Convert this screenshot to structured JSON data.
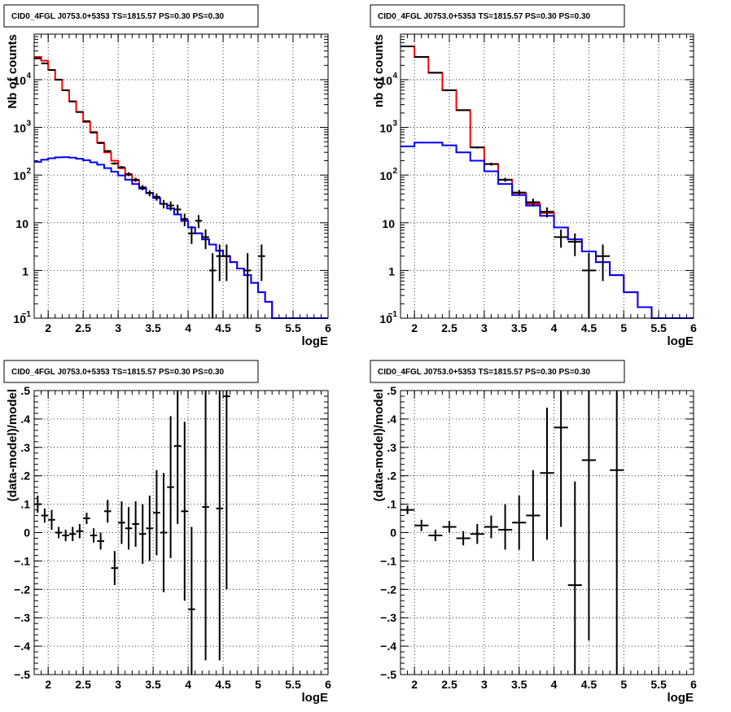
{
  "chart_data": [
    {
      "type": "step",
      "title": "CID0_4FGL J0753.0+5353 TS=1815.57 PS=0.30 PS=0.30",
      "xlabel": "logE",
      "ylabel": "Nb of counts",
      "ylog": true,
      "xlim": [
        1.8,
        6.0
      ],
      "ylim": [
        0.1,
        90000
      ],
      "xticks": [
        2,
        2.5,
        3,
        3.5,
        4,
        4.5,
        5,
        5.5,
        6
      ],
      "yticks": [
        {
          "v": 0.1,
          "label": "10",
          "sup": "−1"
        },
        {
          "v": 1,
          "label": "1"
        },
        {
          "v": 10,
          "label": "10"
        },
        {
          "v": 100,
          "label": "10",
          "sup": "2"
        },
        {
          "v": 1000,
          "label": "10",
          "sup": "3"
        },
        {
          "v": 10000,
          "label": "10",
          "sup": "4"
        }
      ],
      "grid": true,
      "series": [
        {
          "color": "#ff0000",
          "bins": [
            1.8,
            1.9,
            2.0,
            2.1,
            2.2,
            2.3,
            2.4,
            2.5,
            2.6,
            2.7,
            2.8,
            2.9,
            3.0,
            3.1,
            3.2,
            3.3,
            3.4,
            3.5,
            3.6,
            3.7,
            3.8,
            3.9,
            4.0,
            4.1,
            4.2,
            4.3,
            4.4,
            4.5,
            4.6,
            4.7,
            4.8,
            4.9,
            5.0,
            5.1,
            5.2,
            5.3,
            5.4,
            5.5,
            5.6,
            5.7,
            5.8,
            5.9,
            6.0
          ],
          "values": [
            30000,
            25000,
            16000,
            10000,
            6000,
            3500,
            2100,
            1300,
            800,
            480,
            300,
            200,
            140,
            100,
            78,
            55,
            42,
            33,
            25,
            20,
            15,
            11,
            8,
            6,
            4.5,
            3.5,
            2.6,
            2.0,
            1.5,
            1.1,
            0.8,
            0.55,
            0.35,
            0.22,
            0.1,
            0.1,
            0.1,
            0.1,
            0.1,
            0.1,
            0.1,
            0.1
          ]
        },
        {
          "color": "#0000ff",
          "bins": [
            1.8,
            1.9,
            2.0,
            2.1,
            2.2,
            2.3,
            2.4,
            2.5,
            2.6,
            2.7,
            2.8,
            2.9,
            3.0,
            3.1,
            3.2,
            3.3,
            3.4,
            3.5,
            3.6,
            3.7,
            3.8,
            3.9,
            4.0,
            4.1,
            4.2,
            4.3,
            4.4,
            4.5,
            4.6,
            4.7,
            4.8,
            4.9,
            5.0,
            5.1,
            5.2,
            5.3,
            5.4,
            5.5,
            5.6,
            5.7,
            5.8,
            5.9,
            6.0
          ],
          "values": [
            190,
            210,
            225,
            235,
            238,
            232,
            220,
            205,
            185,
            165,
            140,
            118,
            98,
            80,
            65,
            52,
            42,
            33,
            25,
            20,
            15,
            11,
            8,
            6,
            4.5,
            3.5,
            2.6,
            2.0,
            1.5,
            1.1,
            0.8,
            0.55,
            0.35,
            0.22,
            0.1,
            0.1,
            0.1,
            0.1,
            0.1,
            0.1,
            0.1,
            0.1
          ]
        }
      ],
      "points": [
        {
          "x": 1.85,
          "xe": 0.05,
          "y": 28000,
          "lo": 27500,
          "hi": 28500
        },
        {
          "x": 1.95,
          "xe": 0.05,
          "y": 22000,
          "lo": 21600,
          "hi": 22400
        },
        {
          "x": 2.05,
          "xe": 0.05,
          "y": 16000,
          "lo": 15700,
          "hi": 16300
        },
        {
          "x": 2.15,
          "xe": 0.05,
          "y": 10000,
          "lo": 9800,
          "hi": 10200
        },
        {
          "x": 2.25,
          "xe": 0.05,
          "y": 6000,
          "lo": 5850,
          "hi": 6150
        },
        {
          "x": 2.35,
          "xe": 0.05,
          "y": 3500,
          "lo": 3400,
          "hi": 3600
        },
        {
          "x": 2.45,
          "xe": 0.05,
          "y": 2100,
          "lo": 2030,
          "hi": 2170
        },
        {
          "x": 2.55,
          "xe": 0.05,
          "y": 1350,
          "lo": 1300,
          "hi": 1400
        },
        {
          "x": 2.65,
          "xe": 0.05,
          "y": 780,
          "lo": 750,
          "hi": 810
        },
        {
          "x": 2.75,
          "xe": 0.05,
          "y": 470,
          "lo": 450,
          "hi": 490
        },
        {
          "x": 2.85,
          "xe": 0.05,
          "y": 320,
          "lo": 305,
          "hi": 335
        },
        {
          "x": 2.95,
          "xe": 0.05,
          "y": 175,
          "lo": 165,
          "hi": 185
        },
        {
          "x": 3.05,
          "xe": 0.05,
          "y": 145,
          "lo": 135,
          "hi": 155
        },
        {
          "x": 3.15,
          "xe": 0.05,
          "y": 105,
          "lo": 95,
          "hi": 115
        },
        {
          "x": 3.25,
          "xe": 0.05,
          "y": 80,
          "lo": 72,
          "hi": 88
        },
        {
          "x": 3.35,
          "xe": 0.05,
          "y": 55,
          "lo": 48,
          "hi": 62
        },
        {
          "x": 3.45,
          "xe": 0.05,
          "y": 42,
          "lo": 36,
          "hi": 48
        },
        {
          "x": 3.55,
          "xe": 0.05,
          "y": 35,
          "lo": 29,
          "hi": 41
        },
        {
          "x": 3.65,
          "xe": 0.05,
          "y": 25,
          "lo": 20,
          "hi": 30
        },
        {
          "x": 3.75,
          "xe": 0.05,
          "y": 23,
          "lo": 18,
          "hi": 28
        },
        {
          "x": 3.85,
          "xe": 0.05,
          "y": 19,
          "lo": 15,
          "hi": 24
        },
        {
          "x": 3.95,
          "xe": 0.05,
          "y": 12,
          "lo": 8.5,
          "hi": 15.5
        },
        {
          "x": 4.05,
          "xe": 0.05,
          "y": 6,
          "lo": 3.6,
          "hi": 8.5
        },
        {
          "x": 4.15,
          "xe": 0.05,
          "y": 11,
          "lo": 7.7,
          "hi": 14.5
        },
        {
          "x": 4.25,
          "xe": 0.05,
          "y": 5,
          "lo": 2.8,
          "hi": 7.3
        },
        {
          "x": 4.35,
          "xe": 0.05,
          "y": 1,
          "lo": 0.1,
          "hi": 2.3
        },
        {
          "x": 4.45,
          "xe": 0.05,
          "y": 2,
          "lo": 0.6,
          "hi": 3.5
        },
        {
          "x": 4.55,
          "xe": 0.05,
          "y": 2,
          "lo": 0.6,
          "hi": 3.5
        },
        {
          "x": 4.85,
          "xe": 0.05,
          "y": 1,
          "lo": 0.1,
          "hi": 2.3
        },
        {
          "x": 5.05,
          "xe": 0.05,
          "y": 2,
          "lo": 0.6,
          "hi": 3.5
        }
      ]
    },
    {
      "type": "step",
      "title": "CID0_4FGL J0753.0+5353 TS=1815.57 PS=0.30 PS=0.30",
      "xlabel": "logE",
      "ylabel": "nb of counts",
      "ylog": true,
      "xlim": [
        1.8,
        6.0
      ],
      "ylim": [
        0.1,
        90000
      ],
      "xticks": [
        2,
        2.5,
        3,
        3.5,
        4,
        4.5,
        5,
        5.5,
        6
      ],
      "yticks": [
        {
          "v": 0.1,
          "label": "10",
          "sup": "−1"
        },
        {
          "v": 1,
          "label": "1"
        },
        {
          "v": 10,
          "label": "10"
        },
        {
          "v": 100,
          "label": "10",
          "sup": "2"
        },
        {
          "v": 1000,
          "label": "10",
          "sup": "3"
        },
        {
          "v": 10000,
          "label": "10",
          "sup": "4"
        }
      ],
      "grid": true,
      "series": [
        {
          "color": "#ff0000",
          "bins": [
            1.8,
            2.0,
            2.2,
            2.4,
            2.6,
            2.8,
            3.0,
            3.2,
            3.4,
            3.6,
            3.8,
            4.0,
            4.2,
            4.4,
            4.6,
            4.8,
            5.0,
            5.2,
            5.4,
            5.6,
            5.8,
            6.0
          ],
          "values": [
            50000,
            30000,
            14000,
            6000,
            2300,
            380,
            170,
            80,
            42,
            25,
            16,
            8,
            4.5,
            2.5,
            1.5,
            0.8,
            0.35,
            0.17,
            0.1,
            0.1,
            0.1
          ]
        },
        {
          "color": "#0000ff",
          "bins": [
            1.8,
            2.0,
            2.2,
            2.4,
            2.6,
            2.8,
            3.0,
            3.2,
            3.4,
            3.6,
            3.8,
            4.0,
            4.2,
            4.4,
            4.6,
            4.8,
            5.0,
            5.2,
            5.4,
            5.6,
            5.8,
            6.0
          ],
          "values": [
            400,
            480,
            480,
            420,
            300,
            200,
            120,
            65,
            38,
            23,
            14,
            8,
            4.5,
            2.5,
            1.5,
            0.8,
            0.35,
            0.17,
            0.1,
            0.1,
            0.1
          ]
        }
      ],
      "points": [
        {
          "x": 1.9,
          "xe": 0.1,
          "y": 50000,
          "lo": 49500,
          "hi": 50500
        },
        {
          "x": 2.1,
          "xe": 0.1,
          "y": 30000,
          "lo": 29600,
          "hi": 30400
        },
        {
          "x": 2.3,
          "xe": 0.1,
          "y": 14000,
          "lo": 13700,
          "hi": 14300
        },
        {
          "x": 2.5,
          "xe": 0.1,
          "y": 6000,
          "lo": 5850,
          "hi": 6150
        },
        {
          "x": 2.7,
          "xe": 0.1,
          "y": 2300,
          "lo": 2230,
          "hi": 2370
        },
        {
          "x": 2.9,
          "xe": 0.1,
          "y": 380,
          "lo": 360,
          "hi": 400
        },
        {
          "x": 3.1,
          "xe": 0.1,
          "y": 170,
          "lo": 158,
          "hi": 182
        },
        {
          "x": 3.3,
          "xe": 0.1,
          "y": 80,
          "lo": 72,
          "hi": 88
        },
        {
          "x": 3.5,
          "xe": 0.1,
          "y": 43,
          "lo": 37,
          "hi": 49
        },
        {
          "x": 3.7,
          "xe": 0.1,
          "y": 27,
          "lo": 22,
          "hi": 32
        },
        {
          "x": 3.9,
          "xe": 0.1,
          "y": 17,
          "lo": 13,
          "hi": 21
        },
        {
          "x": 4.1,
          "xe": 0.1,
          "y": 5,
          "lo": 3,
          "hi": 7.2
        },
        {
          "x": 4.3,
          "xe": 0.1,
          "y": 4,
          "lo": 2,
          "hi": 6
        },
        {
          "x": 4.5,
          "xe": 0.1,
          "y": 1,
          "lo": 0.1,
          "hi": 2.3
        },
        {
          "x": 4.7,
          "xe": 0.1,
          "y": 2,
          "lo": 0.6,
          "hi": 3.5
        }
      ]
    },
    {
      "type": "errorbar",
      "title": "CID0_4FGL J0753.0+5353 TS=1815.57 PS=0.30 PS=0.30",
      "xlabel": "logE",
      "ylabel": "(data-model)/model",
      "xlim": [
        1.8,
        6.0
      ],
      "ylim": [
        -0.5,
        0.5
      ],
      "xticks": [
        2,
        2.5,
        3,
        3.5,
        4,
        4.5,
        5,
        5.5,
        6
      ],
      "yticks": [
        -0.5,
        -0.4,
        -0.3,
        -0.2,
        -0.1,
        0,
        0.1,
        0.2,
        0.3,
        0.4,
        0.5
      ],
      "grid": true,
      "points": [
        {
          "x": 1.85,
          "xe": 0.05,
          "y": 0.1,
          "lo": 0.07,
          "hi": 0.13
        },
        {
          "x": 1.95,
          "xe": 0.05,
          "y": 0.06,
          "lo": 0.035,
          "hi": 0.085
        },
        {
          "x": 2.05,
          "xe": 0.05,
          "y": 0.045,
          "lo": 0.01,
          "hi": 0.08
        },
        {
          "x": 2.15,
          "xe": 0.05,
          "y": 0.0,
          "lo": -0.02,
          "hi": 0.02
        },
        {
          "x": 2.25,
          "xe": 0.05,
          "y": -0.01,
          "lo": -0.03,
          "hi": 0.01
        },
        {
          "x": 2.35,
          "xe": 0.05,
          "y": -0.005,
          "lo": -0.03,
          "hi": 0.02
        },
        {
          "x": 2.45,
          "xe": 0.05,
          "y": 0.005,
          "lo": -0.02,
          "hi": 0.03
        },
        {
          "x": 2.55,
          "xe": 0.05,
          "y": 0.05,
          "lo": 0.03,
          "hi": 0.07
        },
        {
          "x": 2.65,
          "xe": 0.05,
          "y": -0.01,
          "lo": -0.035,
          "hi": 0.015
        },
        {
          "x": 2.75,
          "xe": 0.05,
          "y": -0.03,
          "lo": -0.06,
          "hi": 0.0
        },
        {
          "x": 2.85,
          "xe": 0.05,
          "y": 0.075,
          "lo": 0.035,
          "hi": 0.115
        },
        {
          "x": 2.95,
          "xe": 0.05,
          "y": -0.125,
          "lo": -0.185,
          "hi": -0.065
        },
        {
          "x": 3.05,
          "xe": 0.05,
          "y": 0.035,
          "lo": -0.04,
          "hi": 0.11
        },
        {
          "x": 3.15,
          "xe": 0.05,
          "y": 0.015,
          "lo": -0.06,
          "hi": 0.09
        },
        {
          "x": 3.25,
          "xe": 0.05,
          "y": 0.03,
          "lo": -0.05,
          "hi": 0.11
        },
        {
          "x": 3.35,
          "xe": 0.05,
          "y": -0.005,
          "lo": -0.11,
          "hi": 0.1
        },
        {
          "x": 3.45,
          "xe": 0.05,
          "y": 0.015,
          "lo": -0.1,
          "hi": 0.13
        },
        {
          "x": 3.55,
          "xe": 0.05,
          "y": 0.07,
          "lo": -0.08,
          "hi": 0.22
        },
        {
          "x": 3.65,
          "xe": 0.05,
          "y": 0.0,
          "lo": -0.21,
          "hi": 0.21
        },
        {
          "x": 3.75,
          "xe": 0.05,
          "y": 0.16,
          "lo": -0.09,
          "hi": 0.41
        },
        {
          "x": 3.85,
          "xe": 0.05,
          "y": 0.305,
          "lo": 0.03,
          "hi": 0.58
        },
        {
          "x": 3.95,
          "xe": 0.05,
          "y": 0.075,
          "lo": -0.24,
          "hi": 0.39
        },
        {
          "x": 4.05,
          "xe": 0.05,
          "y": -0.27,
          "lo": -0.56,
          "hi": 0.02
        },
        {
          "x": 4.25,
          "xe": 0.05,
          "y": 0.09,
          "lo": -0.45,
          "hi": 0.63
        },
        {
          "x": 4.45,
          "xe": 0.05,
          "y": 0.085,
          "lo": -0.45,
          "hi": 0.62
        },
        {
          "x": 4.55,
          "xe": 0.05,
          "y": 0.48,
          "lo": -0.2,
          "hi": 0.9
        }
      ]
    },
    {
      "type": "errorbar",
      "title": "CID0_4FGL J0753.0+5353 TS=1815.57 PS=0.30 PS=0.30",
      "xlabel": "logE",
      "ylabel": "(data-model)/model",
      "xlim": [
        1.8,
        6.0
      ],
      "ylim": [
        -0.5,
        0.5
      ],
      "xticks": [
        2,
        2.5,
        3,
        3.5,
        4,
        4.5,
        5,
        5.5,
        6
      ],
      "yticks": [
        -0.5,
        -0.4,
        -0.3,
        -0.2,
        -0.1,
        0,
        0.1,
        0.2,
        0.3,
        0.4,
        0.5
      ],
      "grid": true,
      "points": [
        {
          "x": 1.9,
          "xe": 0.1,
          "y": 0.08,
          "lo": 0.065,
          "hi": 0.095
        },
        {
          "x": 2.1,
          "xe": 0.1,
          "y": 0.025,
          "lo": 0.005,
          "hi": 0.045
        },
        {
          "x": 2.3,
          "xe": 0.1,
          "y": -0.01,
          "lo": -0.03,
          "hi": 0.01
        },
        {
          "x": 2.5,
          "xe": 0.1,
          "y": 0.02,
          "lo": 0.0,
          "hi": 0.04
        },
        {
          "x": 2.7,
          "xe": 0.1,
          "y": -0.02,
          "lo": -0.045,
          "hi": 0.005
        },
        {
          "x": 2.9,
          "xe": 0.1,
          "y": -0.005,
          "lo": -0.04,
          "hi": 0.03
        },
        {
          "x": 3.1,
          "xe": 0.1,
          "y": 0.02,
          "lo": -0.02,
          "hi": 0.06
        },
        {
          "x": 3.3,
          "xe": 0.1,
          "y": 0.01,
          "lo": -0.06,
          "hi": 0.1
        },
        {
          "x": 3.5,
          "xe": 0.1,
          "y": 0.035,
          "lo": -0.06,
          "hi": 0.13
        },
        {
          "x": 3.7,
          "xe": 0.1,
          "y": 0.06,
          "lo": -0.1,
          "hi": 0.22
        },
        {
          "x": 3.9,
          "xe": 0.1,
          "y": 0.21,
          "lo": -0.025,
          "hi": 0.44
        },
        {
          "x": 4.1,
          "xe": 0.1,
          "y": 0.37,
          "lo": 0.02,
          "hi": 0.72
        },
        {
          "x": 4.3,
          "xe": 0.1,
          "y": -0.185,
          "lo": -0.55,
          "hi": 0.18
        },
        {
          "x": 4.5,
          "xe": 0.1,
          "y": 0.255,
          "lo": -0.38,
          "hi": 0.89
        },
        {
          "x": 4.9,
          "xe": 0.1,
          "y": 0.22,
          "lo": -0.55,
          "hi": 0.99
        }
      ]
    }
  ]
}
